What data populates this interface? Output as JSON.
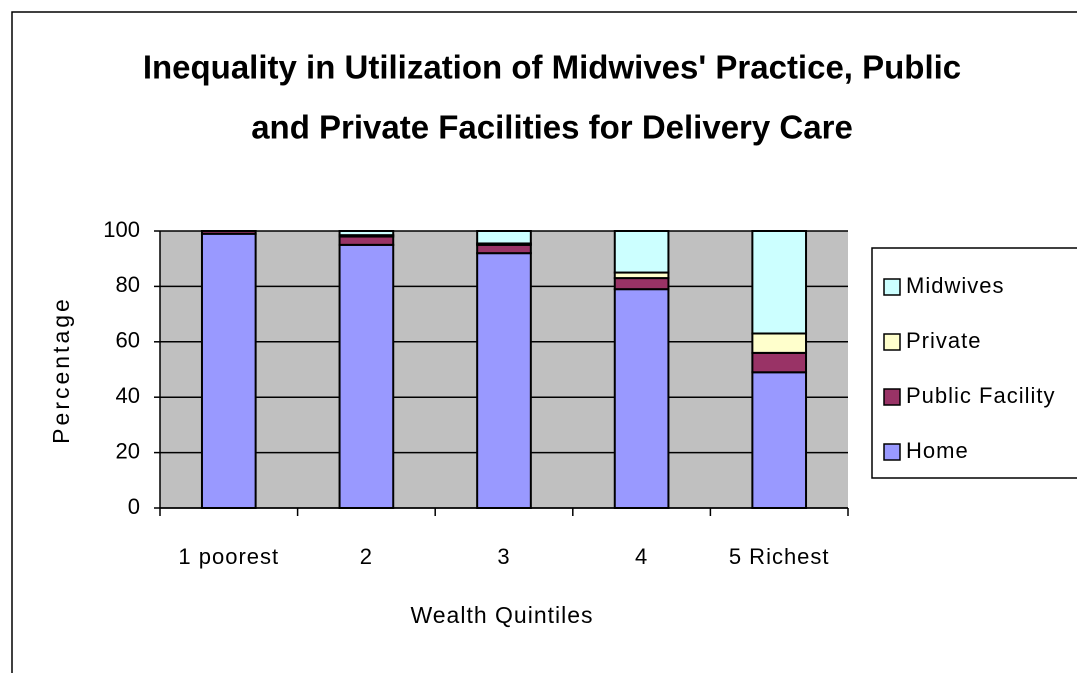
{
  "chart_data": {
    "type": "stacked_bar",
    "title": [
      "Inequality in Utilization of Midwives' Practice,  Public",
      "and Private Facilities for Delivery Care"
    ],
    "x_label": "Wealth Quintiles",
    "y_label": "Percentage",
    "categories": [
      "1 poorest",
      "2",
      "3",
      "4",
      "5 Richest"
    ],
    "series": [
      {
        "name": "Home",
        "color": "#9999ff",
        "values": [
          99,
          95,
          92,
          79,
          49
        ]
      },
      {
        "name": "Public Facility",
        "color": "#993366",
        "values": [
          1,
          3,
          3,
          4,
          7
        ]
      },
      {
        "name": "Private",
        "color": "#ffffcc",
        "values": [
          0,
          0.5,
          0.5,
          2,
          7
        ]
      },
      {
        "name": "Midwives",
        "color": "#ccffff",
        "values": [
          0,
          1.5,
          4.5,
          15,
          37
        ]
      }
    ],
    "ylim": [
      0,
      100
    ],
    "yticks": [
      0,
      20,
      40,
      60,
      80,
      100
    ],
    "grid": true,
    "legend": "right"
  }
}
